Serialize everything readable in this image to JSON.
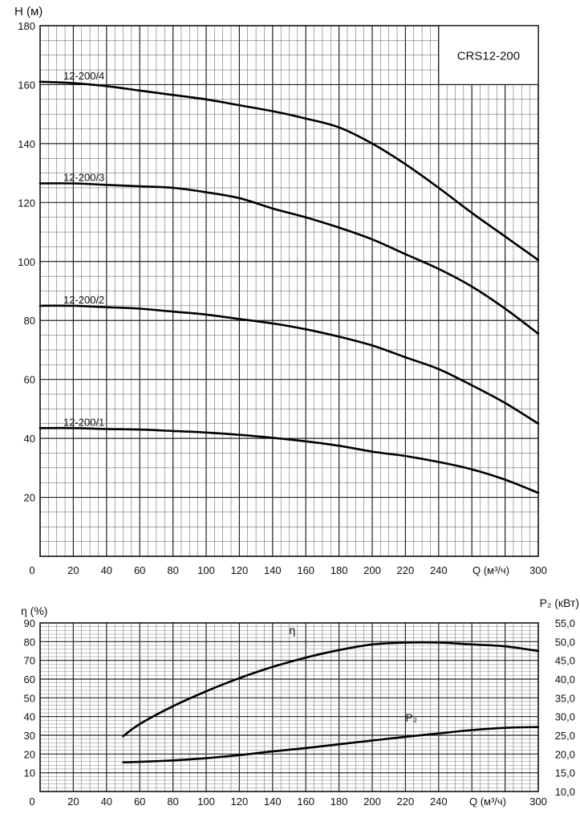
{
  "chart_data": [
    {
      "type": "line",
      "title": "CRS12-200",
      "ylabel": "H (м)",
      "xlabel": "Q (м³/ч)",
      "xlim": [
        0,
        300
      ],
      "ylim": [
        0,
        180
      ],
      "x_ticks": [
        "0",
        "20",
        "40",
        "60",
        "80",
        "100",
        "120",
        "140",
        "160",
        "180",
        "200",
        "220",
        "240",
        "300"
      ],
      "y_ticks": [
        "20",
        "40",
        "60",
        "80",
        "100",
        "120",
        "140",
        "160",
        "180"
      ],
      "grid": true,
      "series": [
        {
          "name": "12-200/4",
          "x": [
            0,
            20,
            40,
            60,
            80,
            100,
            120,
            140,
            160,
            180,
            200,
            220,
            240,
            260,
            280,
            300
          ],
          "y": [
            161,
            160.5,
            159.5,
            158,
            156.5,
            155,
            153,
            151,
            148.5,
            145.5,
            140,
            133,
            125,
            116.5,
            108.5,
            100.5
          ]
        },
        {
          "name": "12-200/3",
          "x": [
            0,
            20,
            40,
            60,
            80,
            100,
            120,
            140,
            160,
            180,
            200,
            220,
            240,
            260,
            280,
            300
          ],
          "y": [
            126.5,
            126.5,
            126,
            125.5,
            125,
            123.5,
            121.5,
            118,
            115,
            111.5,
            107.5,
            102.5,
            97.5,
            91.5,
            84,
            75.5
          ]
        },
        {
          "name": "12-200/2",
          "x": [
            0,
            20,
            40,
            60,
            80,
            100,
            120,
            140,
            160,
            180,
            200,
            220,
            240,
            260,
            280,
            300
          ],
          "y": [
            85,
            85,
            84.5,
            84,
            83,
            82,
            80.5,
            79,
            77,
            74.5,
            71.5,
            67.5,
            63.5,
            58,
            52,
            45
          ]
        },
        {
          "name": "12-200/1",
          "x": [
            0,
            20,
            40,
            60,
            80,
            100,
            120,
            140,
            160,
            180,
            200,
            220,
            240,
            260,
            280,
            300
          ],
          "y": [
            43.5,
            43.5,
            43.2,
            43,
            42.5,
            42,
            41.2,
            40.2,
            39,
            37.5,
            35.5,
            34,
            32,
            29.5,
            26,
            21.5
          ]
        }
      ]
    },
    {
      "type": "line",
      "ylabel": "η (%)",
      "ylabel_right": "P₂ (кВт)",
      "xlabel": "Q (м³/ч)",
      "xlim": [
        0,
        300
      ],
      "ylim": [
        0,
        90
      ],
      "ylim_right": [
        10.0,
        55.0
      ],
      "x_ticks": [
        "0",
        "20",
        "40",
        "60",
        "80",
        "100",
        "120",
        "140",
        "160",
        "180",
        "200",
        "220",
        "240",
        "300"
      ],
      "y_ticks": [
        "10",
        "20",
        "30",
        "40",
        "50",
        "60",
        "70",
        "80",
        "90"
      ],
      "y_ticks_right": [
        "10,0",
        "15,0",
        "20,0",
        "25,0",
        "30,0",
        "35,0",
        "40,0",
        "45,0",
        "50,0",
        "55,0"
      ],
      "grid": true,
      "series": [
        {
          "name": "η",
          "axis": "left",
          "x": [
            50,
            60,
            80,
            100,
            120,
            140,
            160,
            180,
            200,
            220,
            240,
            260,
            280,
            300
          ],
          "y": [
            29.5,
            36,
            45.5,
            53.5,
            60.5,
            66.5,
            71.5,
            75.5,
            78.5,
            79.5,
            79.5,
            78.5,
            77.5,
            75
          ]
        },
        {
          "name": "P₂",
          "axis": "right",
          "x": [
            50,
            60,
            80,
            100,
            120,
            140,
            160,
            180,
            200,
            220,
            240,
            260,
            280,
            300
          ],
          "y": [
            17.8,
            17.9,
            18.3,
            18.9,
            19.7,
            20.7,
            21.6,
            22.6,
            23.6,
            24.6,
            25.5,
            26.4,
            27,
            27.2
          ]
        }
      ]
    }
  ]
}
